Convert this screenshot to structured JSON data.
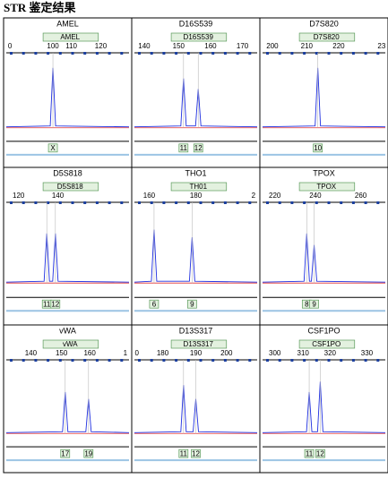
{
  "title": "STR 鉴定结果",
  "panels": [
    {
      "name": "AMEL",
      "locus": "AMEL",
      "ticks": [
        "0",
        "100",
        "110",
        "120"
      ],
      "alleles": [
        "X"
      ]
    },
    {
      "name": "D16S539",
      "locus": "D16S539",
      "ticks": [
        "140",
        "150",
        "160",
        "170"
      ],
      "alleles": [
        "11",
        "12"
      ]
    },
    {
      "name": "D7S820",
      "locus": "D7S820",
      "ticks": [
        "200",
        "210",
        "220",
        "23"
      ],
      "alleles": [
        "10"
      ]
    },
    {
      "name": "D5S818",
      "locus": "D5S818",
      "ticks": [
        "120",
        "140"
      ],
      "alleles": [
        "11",
        "12"
      ]
    },
    {
      "name": "THO1",
      "locus": "TH01",
      "ticks": [
        "160",
        "180",
        "2"
      ],
      "alleles": [
        "6",
        "9"
      ]
    },
    {
      "name": "TPOX",
      "locus": "TPOX",
      "ticks": [
        "220",
        "240",
        "260"
      ],
      "alleles": [
        "8",
        "9"
      ]
    },
    {
      "name": "vWA",
      "locus": "vWA",
      "ticks": [
        "140",
        "150",
        "160",
        "1"
      ],
      "alleles": [
        "17",
        "19"
      ]
    },
    {
      "name": "D13S317",
      "locus": "D13S317",
      "ticks": [
        "0",
        "180",
        "190",
        "200"
      ],
      "alleles": [
        "11",
        "12"
      ]
    },
    {
      "name": "CSF1PO",
      "locus": "CSF1PO",
      "ticks": [
        "300",
        "310",
        "320",
        "330"
      ],
      "alleles": [
        "11",
        "12"
      ]
    }
  ]
}
